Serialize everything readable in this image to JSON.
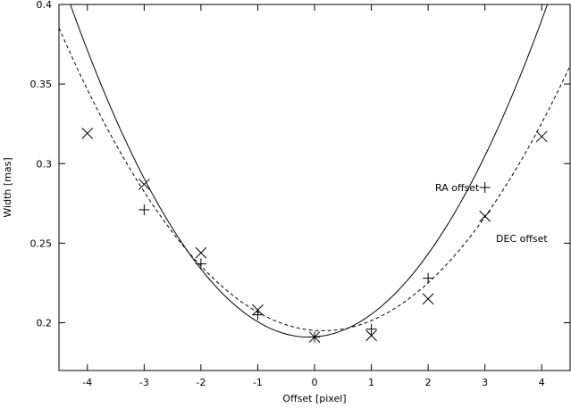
{
  "chart_data": {
    "type": "scatter",
    "title": "",
    "xlabel": "Offset [pixel]",
    "ylabel": "Width [mas]",
    "xlim": [
      -4.5,
      4.5
    ],
    "ylim": [
      0.17,
      0.4
    ],
    "x_ticks": [
      -4,
      -3,
      -2,
      -1,
      0,
      1,
      2,
      3,
      4
    ],
    "y_ticks": [
      0.2,
      0.25,
      0.3,
      0.35,
      0.4
    ],
    "x_tick_labels": [
      "-4",
      "-3",
      "-2",
      "-1",
      "0",
      "1",
      "2",
      "3",
      "4"
    ],
    "y_tick_labels": [
      "0.2",
      "0.25",
      "0.3",
      "0.35",
      "0.4"
    ],
    "grid": false,
    "series": [
      {
        "name": "RA offset",
        "marker": "plus",
        "x": [
          -3,
          -2,
          -1,
          0,
          1,
          2,
          3
        ],
        "y": [
          0.271,
          0.237,
          0.205,
          0.191,
          0.196,
          0.228,
          0.285
        ],
        "fit": {
          "style": "solid",
          "a": 0.01185,
          "x0": -0.1,
          "c": 0.191
        }
      },
      {
        "name": "DEC offset",
        "marker": "cross",
        "x": [
          -4,
          -3,
          -2,
          -1,
          0,
          1,
          2,
          3,
          4
        ],
        "y": [
          0.319,
          0.287,
          0.244,
          0.208,
          0.191,
          0.192,
          0.215,
          0.267,
          0.317
        ],
        "fit": {
          "style": "dashed",
          "a": 0.0088,
          "x0": 0.15,
          "c": 0.195
        }
      }
    ]
  }
}
